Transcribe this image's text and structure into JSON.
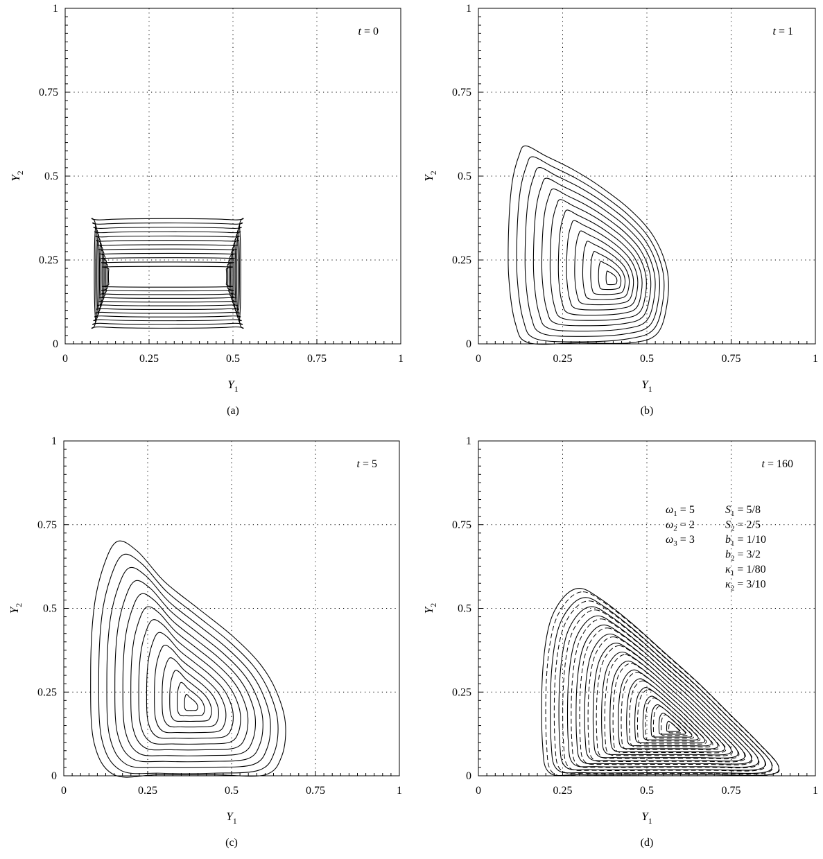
{
  "chart_data": [
    {
      "type": "contour",
      "panel_label": "(a)",
      "annotation": {
        "var": "t",
        "value": "0"
      },
      "xlabel": {
        "base": "Y",
        "sub": "1"
      },
      "ylabel": {
        "base": "Y",
        "sub": "2"
      },
      "xlim": [
        0,
        1
      ],
      "ylim": [
        0,
        1
      ],
      "x_ticks": [
        "0",
        "0.25",
        "0.5",
        "0.75",
        "1"
      ],
      "y_ticks": [
        "0",
        "0.25",
        "0.5",
        "0.75",
        "1"
      ],
      "grid": true,
      "shape": "rect",
      "center": [
        0.3,
        0.2
      ],
      "outer_extent": {
        "x": [
          0.09,
          0.52
        ],
        "y": [
          0.05,
          0.37
        ]
      },
      "inner_extent": {
        "x": [
          0.13,
          0.48
        ],
        "y": [
          0.17,
          0.23
        ]
      },
      "levels": 12,
      "dashed_overlay": false
    },
    {
      "type": "contour",
      "panel_label": "(b)",
      "annotation": {
        "var": "t",
        "value": "1"
      },
      "xlabel": {
        "base": "Y",
        "sub": "1"
      },
      "ylabel": {
        "base": "Y",
        "sub": "2"
      },
      "xlim": [
        0,
        1
      ],
      "ylim": [
        0,
        1
      ],
      "x_ticks": [
        "0",
        "0.25",
        "0.5",
        "0.75",
        "1"
      ],
      "y_ticks": [
        "0",
        "0.25",
        "0.5",
        "0.75",
        "1"
      ],
      "grid": true,
      "shape": "blob",
      "center": [
        0.4,
        0.19
      ],
      "outer_boundary": [
        [
          0.14,
          0.59
        ],
        [
          0.2,
          0.56
        ],
        [
          0.28,
          0.52
        ],
        [
          0.36,
          0.47
        ],
        [
          0.45,
          0.4
        ],
        [
          0.52,
          0.32
        ],
        [
          0.56,
          0.22
        ],
        [
          0.56,
          0.12
        ],
        [
          0.53,
          0.03
        ],
        [
          0.45,
          0.0
        ],
        [
          0.3,
          -0.01
        ],
        [
          0.15,
          0.0
        ],
        [
          0.11,
          0.06
        ],
        [
          0.09,
          0.2
        ],
        [
          0.09,
          0.35
        ],
        [
          0.1,
          0.48
        ],
        [
          0.12,
          0.56
        ]
      ],
      "levels": 13,
      "dashed_overlay": false
    },
    {
      "type": "contour",
      "panel_label": "(c)",
      "annotation": {
        "var": "t",
        "value": "5"
      },
      "xlabel": {
        "base": "Y",
        "sub": "1"
      },
      "ylabel": {
        "base": "Y",
        "sub": "2"
      },
      "xlim": [
        0,
        1
      ],
      "ylim": [
        0,
        1
      ],
      "x_ticks": [
        "0",
        "0.25",
        "0.5",
        "0.75",
        "1"
      ],
      "y_ticks": [
        "0",
        "0.25",
        "0.5",
        "0.75",
        "1"
      ],
      "grid": true,
      "shape": "blob",
      "center": [
        0.38,
        0.21
      ],
      "outer_boundary": [
        [
          0.16,
          0.7
        ],
        [
          0.22,
          0.67
        ],
        [
          0.3,
          0.58
        ],
        [
          0.4,
          0.5
        ],
        [
          0.5,
          0.42
        ],
        [
          0.58,
          0.34
        ],
        [
          0.63,
          0.26
        ],
        [
          0.66,
          0.16
        ],
        [
          0.65,
          0.06
        ],
        [
          0.6,
          0.0
        ],
        [
          0.45,
          -0.01
        ],
        [
          0.28,
          -0.01
        ],
        [
          0.15,
          0.0
        ],
        [
          0.09,
          0.1
        ],
        [
          0.08,
          0.3
        ],
        [
          0.09,
          0.5
        ],
        [
          0.12,
          0.63
        ]
      ],
      "levels": 13,
      "dashed_overlay": false
    },
    {
      "type": "contour",
      "panel_label": "(d)",
      "annotation": {
        "var": "t",
        "value": "160"
      },
      "xlabel": {
        "base": "Y",
        "sub": "1"
      },
      "ylabel": {
        "base": "Y",
        "sub": "2"
      },
      "xlim": [
        0,
        1
      ],
      "ylim": [
        0,
        1
      ],
      "x_ticks": [
        "0",
        "0.25",
        "0.5",
        "0.75",
        "1"
      ],
      "y_ticks": [
        "0",
        "0.25",
        "0.5",
        "0.75",
        "1"
      ],
      "grid": true,
      "shape": "blob",
      "center": [
        0.58,
        0.14
      ],
      "outer_boundary": [
        [
          0.3,
          0.56
        ],
        [
          0.36,
          0.53
        ],
        [
          0.45,
          0.46
        ],
        [
          0.55,
          0.37
        ],
        [
          0.65,
          0.28
        ],
        [
          0.75,
          0.18
        ],
        [
          0.83,
          0.1
        ],
        [
          0.89,
          0.03
        ],
        [
          0.86,
          0.0
        ],
        [
          0.7,
          0.0
        ],
        [
          0.5,
          0.0
        ],
        [
          0.3,
          0.0
        ],
        [
          0.21,
          0.01
        ],
        [
          0.19,
          0.1
        ],
        [
          0.19,
          0.3
        ],
        [
          0.21,
          0.45
        ],
        [
          0.25,
          0.53
        ]
      ],
      "levels": 16,
      "dashed_overlay": true,
      "parameters": {
        "left": [
          {
            "sym": "ω",
            "sub": "1",
            "val": "= 5"
          },
          {
            "sym": "ω",
            "sub": "2",
            "val": "= 2"
          },
          {
            "sym": "ω",
            "sub": "3",
            "val": "= 3"
          }
        ],
        "right": [
          {
            "sym": "S",
            "sub": "1",
            "val": "= 5/8"
          },
          {
            "sym": "S",
            "sub": "2",
            "val": "= 2/5"
          },
          {
            "sym": "b",
            "sub": "1",
            "val": "= 1/10"
          },
          {
            "sym": "b",
            "sub": "2",
            "val": "= 3/2"
          },
          {
            "sym": "κ",
            "sub": "1",
            "val": "= 1/80"
          },
          {
            "sym": "κ",
            "sub": "2",
            "val": "= 3/10"
          }
        ]
      }
    }
  ]
}
